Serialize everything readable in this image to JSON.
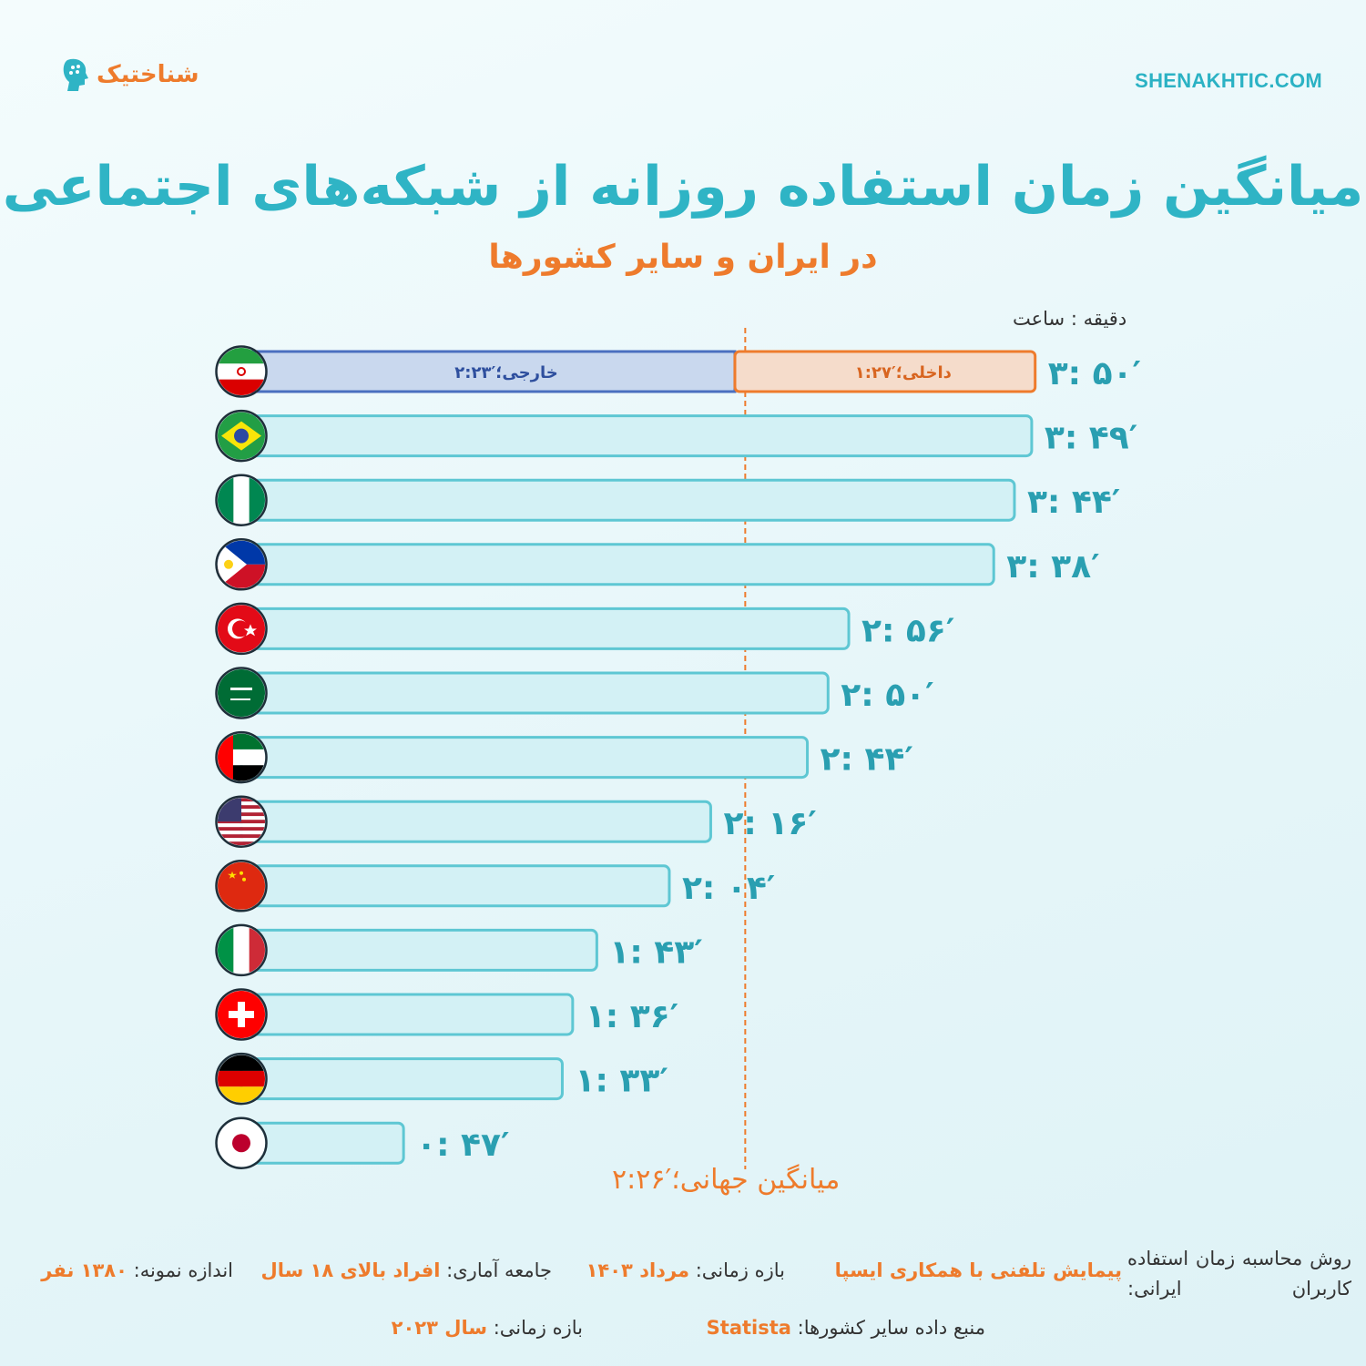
{
  "header": {
    "logo_text": "شناختیک",
    "site": "SHENAKHTIC.COM",
    "title": "میانگین زمان استفاده روزانه از شبکه‌های اجتماعی",
    "subtitle": "در ایران و سایر کشورها"
  },
  "chart_data": {
    "type": "bar",
    "orientation": "horizontal",
    "unit_label": "دقیقه : ساعت",
    "categories": [
      "Iran",
      "Brazil",
      "Nigeria",
      "Philippines",
      "Turkey",
      "Saudi Arabia",
      "UAE",
      "United States",
      "China",
      "Italy",
      "Switzerland",
      "Germany",
      "Japan"
    ],
    "values_minutes": [
      230,
      229,
      224,
      218,
      176,
      170,
      164,
      136,
      124,
      103,
      96,
      93,
      47
    ],
    "value_labels": [
      "۳: ۵۰′",
      "۳: ۴۹′",
      "۳: ۴۴′",
      "۳: ۳۸′",
      "۲: ۵۶′",
      "۲: ۵۰′",
      "۲: ۴۴′",
      "۲: ۱۶′",
      "۲: ۰۴′",
      "۱: ۴۳′",
      "۱: ۳۶′",
      "۱: ۳۳′",
      "۰: ۴۷′"
    ],
    "iran_breakdown": {
      "foreign": {
        "label": "خارجی؛′۲:۲۳",
        "minutes": 143
      },
      "domestic": {
        "label": "داخلی؛′۱:۲۷",
        "minutes": 87
      }
    },
    "reference_line": {
      "label": "میانگین جهانی؛′۲:۲۶",
      "minutes": 146
    },
    "xlim_minutes": [
      0,
      230
    ],
    "grid": false,
    "colors": {
      "bar_fill": "#d3f1f5",
      "bar_stroke": "#5ec7d3",
      "foreign_fill": "#c9d8ee",
      "foreign_stroke": "#4a6fbf",
      "domestic_fill": "#f5dccb",
      "domestic_stroke": "#ee7b2c",
      "value_text": "#2a9fb1",
      "reference": "#ee7b2c"
    }
  },
  "footer": {
    "method_label": "روش محاسبه زمان استفاده کاربران ایرانی:",
    "method_value": "پیمایش تلفنی با همکاری ایسپا",
    "period_label": "بازه زمانی:",
    "period_value": "مرداد ۱۴۰۳",
    "population_label": "جامعه آماری:",
    "population_value": "افراد بالای ۱۸ سال",
    "sample_label": "اندازه نمونه:",
    "sample_value": "۱۳۸۰ نفر",
    "source_label": "منبع داده سایر کشورها:",
    "source_value": "Statista",
    "period2_label": "بازه زمانی:",
    "period2_value": "سال ۲۰۲۳"
  }
}
